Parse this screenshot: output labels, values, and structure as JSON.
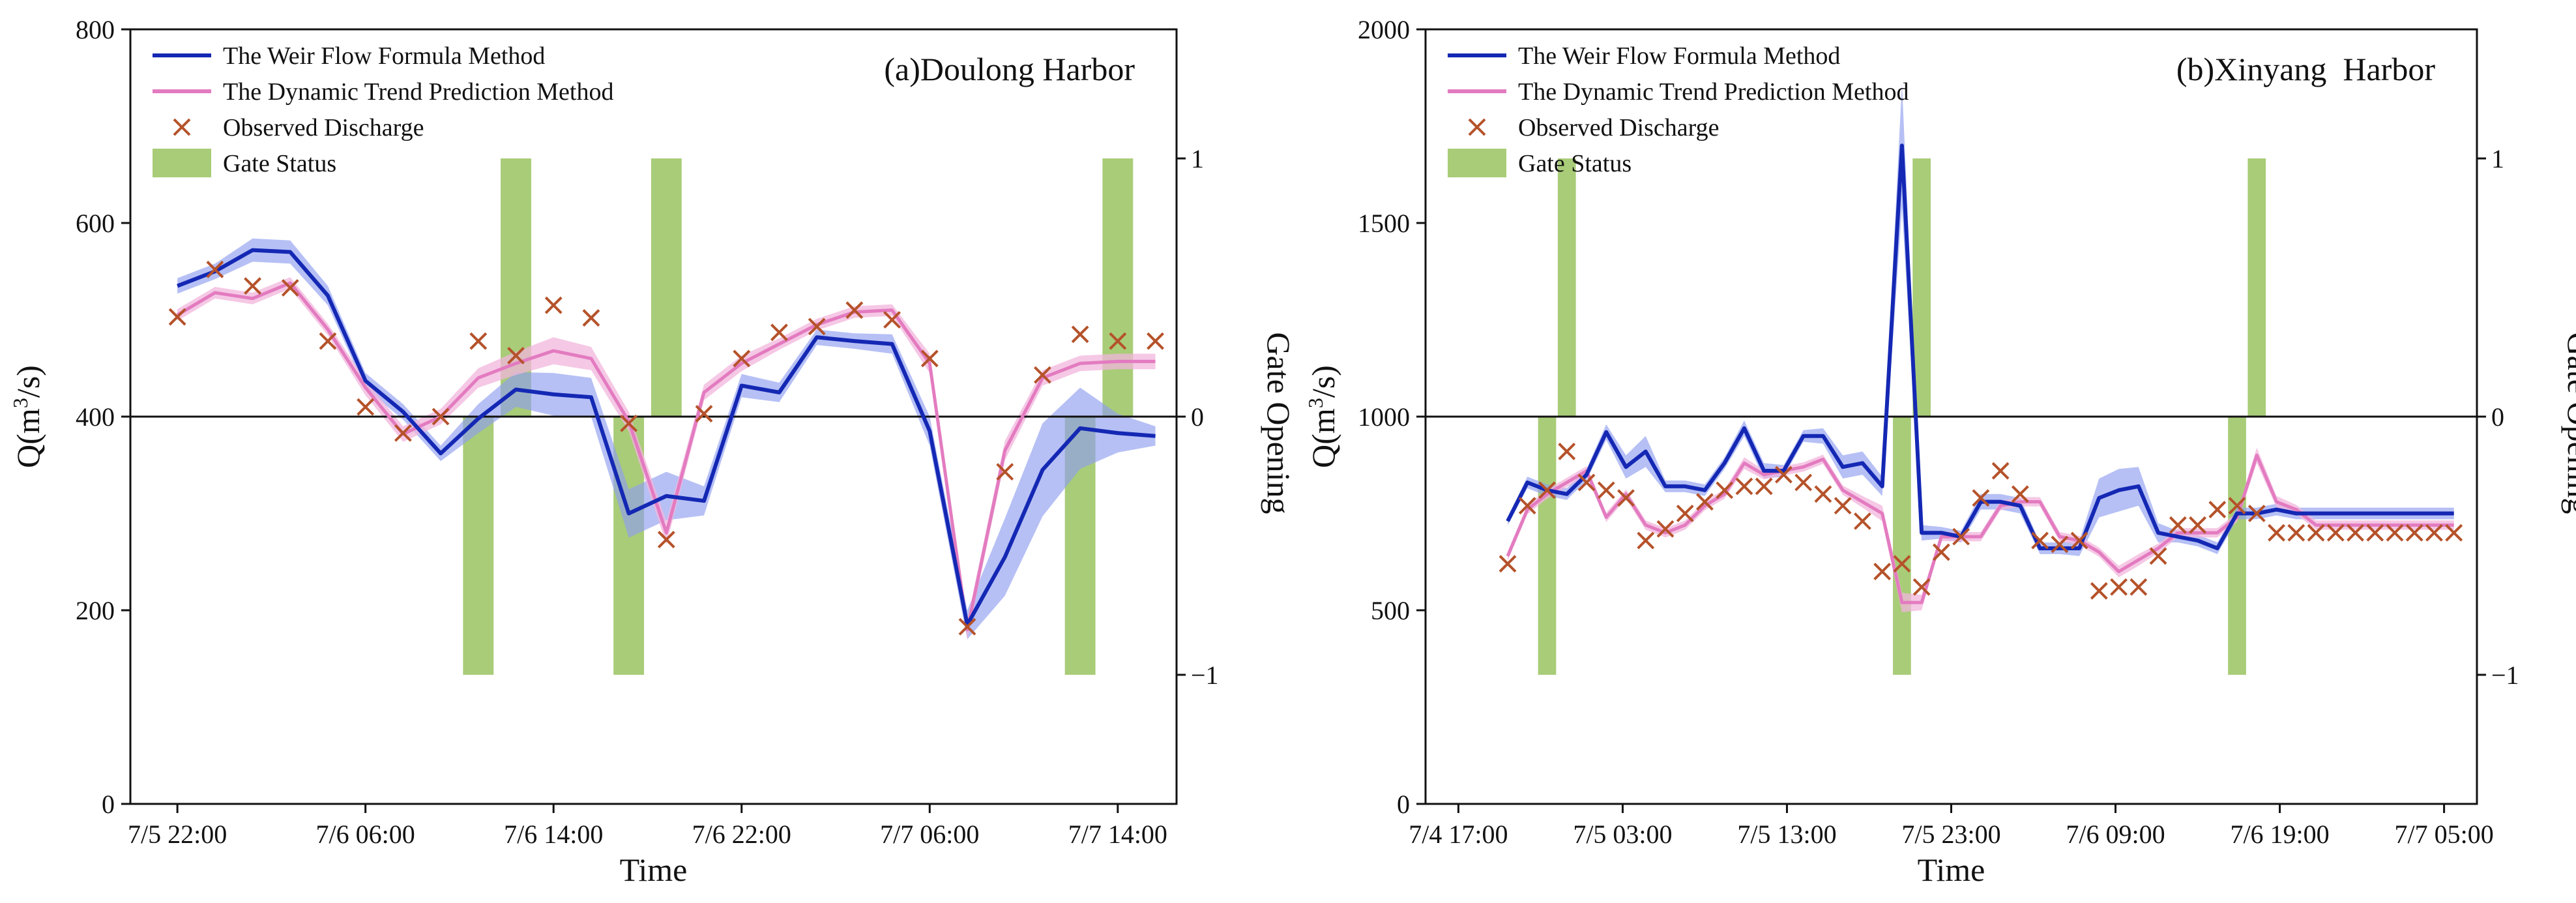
{
  "colors": {
    "weir": "#1428b4",
    "weir_band": "#8f9ef0",
    "dyn": "#e37bc0",
    "dyn_band": "#f2b6dc",
    "observed": "#b5522a",
    "gate": "#a9cc78",
    "axis": "#111111"
  },
  "legend": {
    "weir": "The Weir Flow Formula Method",
    "dyn": "The Dynamic Trend Prediction Method",
    "obs": "Observed Discharge",
    "gate": "Gate Status"
  },
  "chart_data": [
    {
      "type": "line",
      "title": "(a)Doulong Harbor",
      "xlabel": "Time",
      "ylabel_prefix": "Q(m",
      "ylabel_sup": "3",
      "ylabel_suffix": "/s)",
      "y2label": "Gate Opening",
      "xlim": [
        -2,
        42.5
      ],
      "ylim": [
        0,
        800
      ],
      "y2lim": [
        -1.5,
        1.5
      ],
      "x_tick_positions": [
        0,
        8,
        16,
        24,
        32,
        40
      ],
      "x_tick_labels": [
        "7/5 22:00",
        "7/6 06:00",
        "7/6 14:00",
        "7/6 22:00",
        "7/7 06:00",
        "7/7 14:00"
      ],
      "y_ticks": [
        0,
        200,
        400,
        600,
        800
      ],
      "y2_ticks": [
        -1,
        0,
        1
      ],
      "y2_tick_labels": [
        "−1",
        "0",
        "1"
      ],
      "reference_line_y2": 0,
      "series": [
        {
          "name": "The Weir Flow Formula Method",
          "key": "weir",
          "x": [
            0,
            1.6,
            3.2,
            4.8,
            6.4,
            8,
            9.6,
            11.2,
            12.8,
            14.4,
            16,
            17.6,
            19.2,
            20.8,
            22.4,
            24,
            25.6,
            27.2,
            28.8,
            30.4,
            32,
            33.6,
            35.2,
            36.8,
            38.4,
            40,
            41.6
          ],
          "values": [
            535,
            550,
            572,
            570,
            525,
            437,
            405,
            362,
            398,
            428,
            423,
            420,
            300,
            318,
            313,
            432,
            425,
            482,
            478,
            475,
            385,
            185,
            255,
            345,
            388,
            383,
            380
          ],
          "band": [
            8,
            8,
            12,
            12,
            10,
            8,
            8,
            8,
            15,
            18,
            22,
            20,
            25,
            25,
            15,
            12,
            10,
            8,
            8,
            10,
            15,
            15,
            40,
            48,
            42,
            20,
            10
          ]
        },
        {
          "name": "The Dynamic Trend Prediction Method",
          "key": "dyn",
          "x": [
            0,
            1.6,
            3.2,
            4.8,
            6.4,
            8,
            9.6,
            11.2,
            12.8,
            14.4,
            16,
            17.6,
            19.2,
            20.8,
            22.4,
            24,
            25.6,
            27.2,
            28.8,
            30.4,
            32,
            33.6,
            35.2,
            36.8,
            38.4,
            40,
            41.6
          ],
          "values": [
            505,
            528,
            522,
            538,
            490,
            430,
            382,
            400,
            440,
            455,
            468,
            460,
            395,
            280,
            425,
            455,
            475,
            495,
            508,
            510,
            455,
            180,
            365,
            440,
            455,
            457,
            457
          ],
          "band": [
            6,
            6,
            6,
            6,
            6,
            8,
            8,
            8,
            10,
            12,
            14,
            12,
            10,
            12,
            8,
            8,
            6,
            6,
            6,
            6,
            10,
            10,
            10,
            8,
            8,
            8,
            8
          ]
        }
      ],
      "observed": {
        "name": "Observed Discharge",
        "x": [
          0,
          1.6,
          3.2,
          4.8,
          6.4,
          8,
          9.6,
          11.2,
          12.8,
          14.4,
          16,
          17.6,
          19.2,
          20.8,
          22.4,
          24,
          25.6,
          27.2,
          28.8,
          30.4,
          32,
          33.6,
          35.2,
          36.8,
          38.4,
          40,
          41.6
        ],
        "values": [
          503,
          552,
          535,
          533,
          478,
          410,
          383,
          400,
          478,
          463,
          515,
          502,
          393,
          273,
          403,
          460,
          487,
          493,
          510,
          500,
          460,
          183,
          343,
          443,
          485,
          478,
          478
        ]
      },
      "gate": {
        "name": "Gate Status",
        "bars": [
          {
            "x": 12.8,
            "value": -1
          },
          {
            "x": 14.4,
            "value": 1
          },
          {
            "x": 19.2,
            "value": -1
          },
          {
            "x": 20.8,
            "value": 1
          },
          {
            "x": 38.4,
            "value": -1
          },
          {
            "x": 40,
            "value": 1
          }
        ],
        "bar_width": 1.3
      }
    },
    {
      "type": "line",
      "title": "(b)Xinyang  Harbor",
      "xlabel": "Time",
      "ylabel_prefix": "Q(m",
      "ylabel_sup": "3",
      "ylabel_suffix": "/s)",
      "y2label": "Gate Opening",
      "xlim": [
        -2,
        62
      ],
      "ylim": [
        0,
        2000
      ],
      "y2lim": [
        -1.5,
        1.5
      ],
      "x_tick_positions": [
        0,
        10,
        20,
        30,
        40,
        50,
        60
      ],
      "x_tick_labels": [
        "7/4 17:00",
        "7/5 03:00",
        "7/5 13:00",
        "7/5 23:00",
        "7/6 09:00",
        "7/6 19:00",
        "7/7 05:00"
      ],
      "y_ticks": [
        0,
        500,
        1000,
        1500,
        2000
      ],
      "y2_ticks": [
        -1,
        0,
        1
      ],
      "y2_tick_labels": [
        "−1",
        "0",
        "1"
      ],
      "reference_line_y2": 0,
      "series": [
        {
          "name": "The Weir Flow Formula Method",
          "key": "weir",
          "x": [
            3,
            4.2,
            5.4,
            6.6,
            7.8,
            9,
            10.2,
            11.4,
            12.6,
            13.8,
            15,
            16.2,
            17.4,
            18.6,
            19.8,
            21,
            22.2,
            23.4,
            24.6,
            25.8,
            27,
            28.2,
            29.4,
            30.6,
            31.8,
            33,
            34.2,
            35.4,
            36.6,
            37.8,
            39,
            40.2,
            41.4,
            42.6,
            43.8,
            45,
            46.2,
            47.4,
            48.6,
            49.8,
            51,
            52.2,
            53.4,
            54.6,
            55.8,
            57,
            58.2,
            59.4,
            60.6
          ],
          "values": [
            730,
            830,
            810,
            800,
            850,
            960,
            870,
            910,
            820,
            820,
            810,
            880,
            970,
            860,
            860,
            950,
            950,
            870,
            880,
            820,
            1700,
            700,
            700,
            690,
            780,
            780,
            770,
            660,
            660,
            660,
            790,
            810,
            820,
            700,
            690,
            680,
            660,
            750,
            750,
            760,
            750,
            750,
            750,
            750,
            750,
            750,
            750,
            750,
            750
          ],
          "band": [
            10,
            15,
            15,
            15,
            15,
            20,
            30,
            40,
            15,
            15,
            15,
            15,
            20,
            20,
            15,
            15,
            20,
            30,
            30,
            25,
            160,
            20,
            15,
            15,
            20,
            20,
            20,
            15,
            15,
            20,
            50,
            55,
            50,
            25,
            15,
            15,
            15,
            15,
            15,
            15,
            15,
            15,
            15,
            15,
            15,
            15,
            15,
            15,
            15
          ]
        },
        {
          "name": "The Dynamic Trend Prediction Method",
          "key": "dyn",
          "x": [
            3,
            4.2,
            5.4,
            6.6,
            7.8,
            9,
            10.2,
            11.4,
            12.6,
            13.8,
            15,
            16.2,
            17.4,
            18.6,
            19.8,
            21,
            22.2,
            23.4,
            24.6,
            25.8,
            27,
            28.2,
            29.4,
            30.6,
            31.8,
            33,
            34.2,
            35.4,
            36.6,
            37.8,
            39,
            40.2,
            41.4,
            42.6,
            43.8,
            45,
            46.2,
            47.4,
            48.6,
            49.8,
            51,
            52.2,
            53.4,
            54.6,
            55.8,
            57,
            58.2,
            59.4,
            60.6
          ],
          "values": [
            640,
            760,
            800,
            830,
            860,
            740,
            800,
            720,
            700,
            720,
            770,
            800,
            880,
            850,
            860,
            870,
            890,
            810,
            780,
            750,
            520,
            520,
            690,
            690,
            690,
            770,
            780,
            780,
            690,
            680,
            650,
            600,
            630,
            660,
            700,
            700,
            700,
            740,
            900,
            780,
            760,
            720,
            720,
            720,
            720,
            720,
            720,
            720,
            720
          ],
          "band": [
            12,
            12,
            12,
            12,
            12,
            12,
            12,
            12,
            12,
            12,
            12,
            12,
            15,
            12,
            12,
            12,
            12,
            12,
            15,
            20,
            25,
            20,
            12,
            12,
            12,
            12,
            12,
            12,
            12,
            12,
            12,
            15,
            15,
            12,
            12,
            12,
            12,
            12,
            20,
            15,
            12,
            12,
            12,
            12,
            12,
            12,
            12,
            12,
            12
          ]
        }
      ],
      "observed": {
        "name": "Observed Discharge",
        "x": [
          3,
          4.2,
          5.4,
          6.6,
          7.8,
          9,
          10.2,
          11.4,
          12.6,
          13.8,
          15,
          16.2,
          17.4,
          18.6,
          19.8,
          21,
          22.2,
          23.4,
          24.6,
          25.8,
          27,
          28.2,
          29.4,
          30.6,
          31.8,
          33,
          34.2,
          35.4,
          36.6,
          37.8,
          39,
          40.2,
          41.4,
          42.6,
          43.8,
          45,
          46.2,
          47.4,
          48.6,
          49.8,
          51,
          52.2,
          53.4,
          54.6,
          55.8,
          57,
          58.2,
          59.4,
          60.6
        ],
        "values": [
          620,
          770,
          810,
          910,
          830,
          810,
          790,
          680,
          710,
          750,
          780,
          810,
          820,
          820,
          850,
          830,
          800,
          770,
          730,
          600,
          620,
          560,
          650,
          690,
          790,
          860,
          800,
          680,
          670,
          680,
          550,
          560,
          560,
          640,
          720,
          720,
          760,
          770,
          750,
          700,
          700,
          700,
          700,
          700,
          700,
          700,
          700,
          700,
          700
        ]
      },
      "gate": {
        "name": "Gate Status",
        "bars": [
          {
            "x": 5.4,
            "value": -1
          },
          {
            "x": 6.6,
            "value": 1
          },
          {
            "x": 27,
            "value": -1
          },
          {
            "x": 28.2,
            "value": 1
          },
          {
            "x": 47.4,
            "value": -1
          },
          {
            "x": 48.6,
            "value": 1
          }
        ],
        "bar_width": 1.1
      }
    }
  ]
}
